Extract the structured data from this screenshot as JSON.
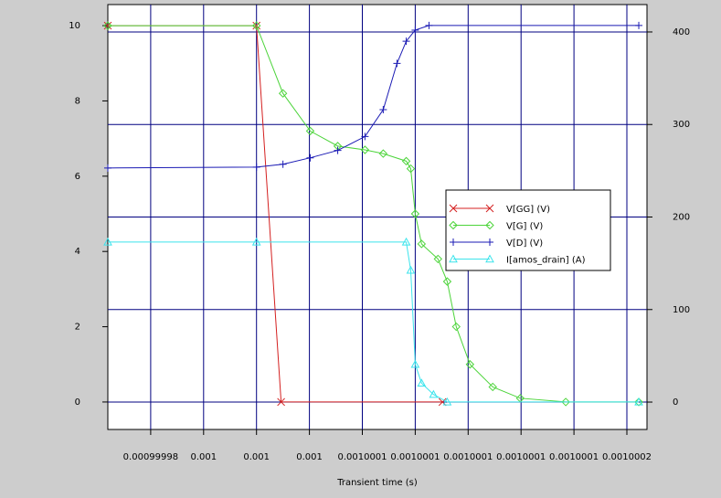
{
  "chart_data": {
    "type": "line",
    "x_label": "Transient time (s)",
    "xlim": [
      0.0009999638,
      0.0010001676
    ],
    "xticks": [
      0.00099998,
      0.001,
      {
        "value": 0.00100002,
        "label": "0.001"
      },
      {
        "value": 0.00100004,
        "label": "0.001"
      },
      {
        "value": 0.00100006,
        "label": "0.0010001"
      },
      {
        "value": 0.00100008,
        "label": "0.0010001"
      },
      0.0010001,
      {
        "value": 0.00100012,
        "label": "0.0010001"
      },
      {
        "value": 0.00100014,
        "label": "0.0010001"
      },
      {
        "value": 0.00100016,
        "label": "0.0010002"
      }
    ],
    "ylim": [
      -0.73,
      10.56
    ],
    "yticks": [
      0,
      2,
      4,
      6,
      8,
      10
    ],
    "y2lim": [
      -29.6,
      429.6
    ],
    "y2ticks": [
      0,
      100,
      200,
      300,
      400
    ],
    "grid": "y2",
    "series": [
      {
        "name": "V[GG] (V)",
        "color": "#d42020",
        "marker": "x",
        "x": [
          0.0009999638,
          0.00100002,
          0.0010000293,
          0.0010000903
        ],
        "values": [
          10,
          10,
          0,
          0
        ]
      },
      {
        "name": "V[G] (V)",
        "color": "#4cd43a",
        "marker": "diamond",
        "x": [
          0.0009999638,
          0.00100002,
          0.00100003,
          0.0010000403,
          0.0010000507,
          0.001000061,
          0.0010000679,
          0.0010000766,
          0.0010000783,
          0.00100008,
          0.0010000824,
          0.0010000886,
          0.0010000921,
          0.0010000955,
          0.0010001007,
          0.0010001093,
          0.0010001197,
          0.0010001369,
          0.0010001645
        ],
        "values": [
          10,
          10,
          8.2,
          7.2,
          6.8,
          6.7,
          6.6,
          6.4,
          6.2,
          5,
          4.2,
          3.8,
          3.2,
          2,
          1,
          0.4,
          0.1,
          0,
          0
        ]
      },
      {
        "name": "V[D] (V)",
        "color": "#1a1ab4",
        "marker": "plus",
        "axis": "y2",
        "x": [
          0.0009999638,
          0.00100002,
          0.00100003,
          0.0010000403,
          0.0010000507,
          0.001000061,
          0.0010000679,
          0.0010000731,
          0.0010000766,
          0.00100008,
          0.0010000852,
          0.0010001645
        ],
        "values": [
          253,
          254,
          257,
          264,
          272,
          287,
          316,
          366,
          390,
          402,
          407,
          407
        ]
      },
      {
        "name": "I[amos_drain] (A)",
        "color": "#3ce4ec",
        "marker": "triangle",
        "x": [
          0.0009999638,
          0.00100002,
          0.0010000766,
          0.0010000783,
          0.00100008,
          0.0010000824,
          0.0010000869,
          0.0010000921,
          0.0010001645
        ],
        "values": [
          4.25,
          4.25,
          4.25,
          3.5,
          1,
          0.5,
          0.2,
          0,
          0
        ]
      }
    ]
  }
}
